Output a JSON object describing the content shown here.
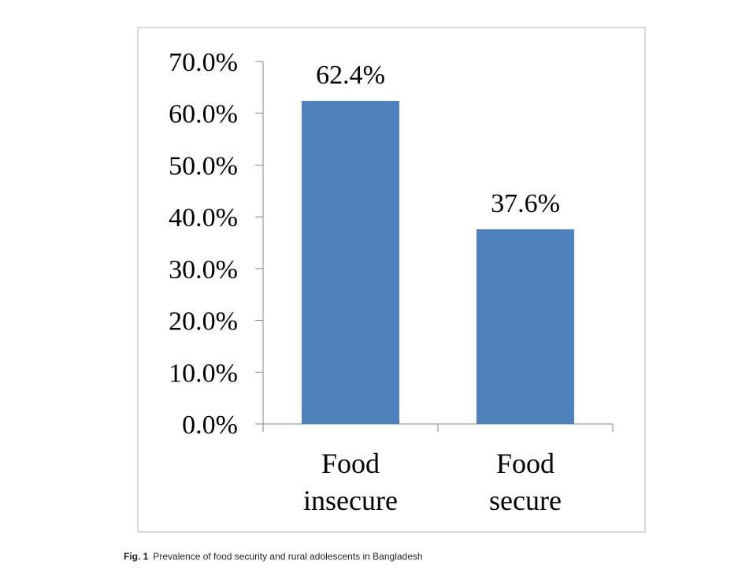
{
  "chart_data": {
    "type": "bar",
    "categories": [
      [
        "Food",
        "insecure"
      ],
      [
        "Food",
        "secure"
      ]
    ],
    "values": [
      62.4,
      37.6
    ],
    "data_labels": [
      "62.4%",
      "37.6%"
    ],
    "yticks": [
      "0.0%",
      "10.0%",
      "20.0%",
      "30.0%",
      "40.0%",
      "50.0%",
      "60.0%",
      "70.0%"
    ],
    "ylim": [
      0,
      70
    ],
    "title": "",
    "xlabel": "",
    "ylabel": "",
    "grid": false,
    "legend": "none",
    "bar_color": "#4f81bd"
  },
  "caption": {
    "number": "Fig. 1",
    "text": "Prevalence of food security and rural adolescents in Bangladesh"
  }
}
